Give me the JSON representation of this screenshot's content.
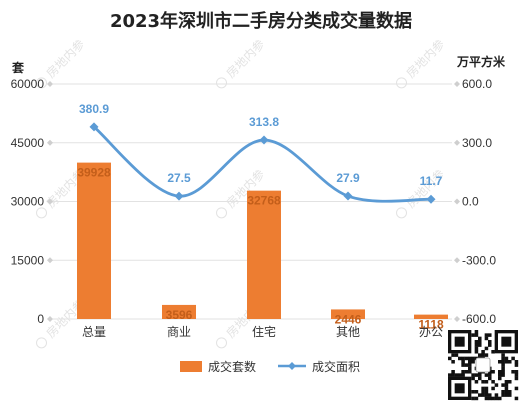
{
  "chart_data": {
    "type": "bar",
    "title": "2023年深圳市二手房分类成交量数据",
    "categories": [
      "总量",
      "商业",
      "住宅",
      "其他",
      "办公"
    ],
    "series": [
      {
        "name": "成交套数",
        "type": "bar",
        "axis": "left",
        "values": [
          39928,
          3596,
          32768,
          2446,
          1118
        ],
        "labels": [
          "39928",
          "3596",
          "32768",
          "2446",
          "1118"
        ],
        "color": "#ED7D31"
      },
      {
        "name": "成交面积",
        "type": "line",
        "axis": "right",
        "smooth": true,
        "values": [
          380.9,
          27.5,
          313.8,
          27.9,
          11.7
        ],
        "labels": [
          "380.9",
          "27.5",
          "313.8",
          "27.9",
          "11.7"
        ],
        "color": "#5B9BD5"
      }
    ],
    "y_left": {
      "label": "套",
      "min": 0,
      "max": 60000,
      "ticks": [
        0,
        15000,
        30000,
        45000,
        60000
      ],
      "tick_labels": [
        "0",
        "15000",
        "30000",
        "45000",
        "60000"
      ]
    },
    "y_right": {
      "label": "万平方米",
      "min": -600,
      "max": 600,
      "ticks": [
        -600,
        -300,
        0,
        300,
        600
      ],
      "tick_labels": [
        "-600.0",
        "-300.0",
        "0.0",
        "300.0",
        "600.0"
      ]
    },
    "grid": true,
    "legend_position": "bottom"
  },
  "watermark": "房地内参"
}
